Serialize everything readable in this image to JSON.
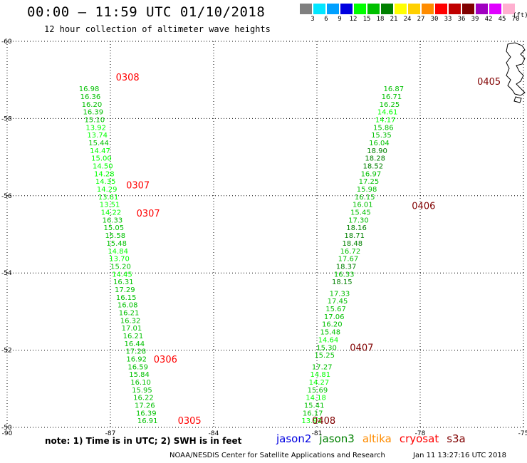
{
  "header": {
    "title": "00:00 – 11:59 UTC 01/10/2018",
    "subtitle": "12 hour collection of altimeter wave heights"
  },
  "legend": {
    "unit": "(ft)",
    "bins": [
      {
        "label": "3",
        "color": "#808080"
      },
      {
        "label": "6",
        "color": "#00e6ff"
      },
      {
        "label": "9",
        "color": "#00a0ff"
      },
      {
        "label": "12",
        "color": "#0000e0"
      },
      {
        "label": "15",
        "color": "#00ff00"
      },
      {
        "label": "18",
        "color": "#00c000"
      },
      {
        "label": "21",
        "color": "#008000"
      },
      {
        "label": "24",
        "color": "#ffff00"
      },
      {
        "label": "27",
        "color": "#ffd000"
      },
      {
        "label": "30",
        "color": "#ff8c00"
      },
      {
        "label": "33",
        "color": "#ff0000"
      },
      {
        "label": "36",
        "color": "#c00000"
      },
      {
        "label": "39",
        "color": "#800000"
      },
      {
        "label": "42",
        "color": "#a000c0"
      },
      {
        "label": "45",
        "color": "#e000ff"
      },
      {
        "label": "70",
        "color": "#ffb0d0"
      }
    ]
  },
  "footer": {
    "note": "note: 1) Time is in UTC; 2) SWH is in feet",
    "satellites": [
      {
        "name": "jason2",
        "color": "#0000e0"
      },
      {
        "name": "jason3",
        "color": "#008000"
      },
      {
        "name": "altika",
        "color": "#ff8c00"
      },
      {
        "name": "cryosat",
        "color": "#ff0000"
      },
      {
        "name": "s3a",
        "color": "#800000"
      }
    ],
    "credit": "NOAA/NESDIS Center for Satellite Applications and Research",
    "timestamp": "Jan 11 13:27:16 UTC 2018"
  },
  "chart_data": {
    "type": "scatter",
    "title": "00:00 – 11:59 UTC 01/10/2018",
    "subtitle": "12 hour collection of altimeter wave heights",
    "xlim": [
      -90,
      -75
    ],
    "ylim": [
      -60,
      -50
    ],
    "xticks": [
      -90,
      -87,
      -84,
      -81,
      -78,
      -75
    ],
    "yticks": [
      -50,
      -52,
      -54,
      -56,
      -58,
      -60
    ],
    "xtick_labels": [
      "-90",
      "-87",
      "-84",
      "-81",
      "-78",
      "-75"
    ],
    "ytick_labels": [
      "-50",
      "-52",
      "-54",
      "-56",
      "-58",
      "-60"
    ],
    "grid": true,
    "time_labels": [
      {
        "text": "0305",
        "lon": -84.7,
        "lat": -50.18,
        "color": "#ff0000"
      },
      {
        "text": "0306",
        "lon": -85.4,
        "lat": -51.77,
        "color": "#ff0000"
      },
      {
        "text": "0307",
        "lon": -85.9,
        "lat": -55.55,
        "color": "#ff0000"
      },
      {
        "text": "0307",
        "lon": -86.2,
        "lat": -56.28,
        "color": "#ff0000"
      },
      {
        "text": "0308",
        "lon": -86.5,
        "lat": -59.08,
        "color": "#ff0000"
      },
      {
        "text": "0408",
        "lon": -80.8,
        "lat": -50.18,
        "color": "#800000"
      },
      {
        "text": "0407",
        "lon": -79.7,
        "lat": -52.08,
        "color": "#800000"
      },
      {
        "text": "0406",
        "lon": -77.9,
        "lat": -55.75,
        "color": "#800000"
      },
      {
        "text": "0405",
        "lon": -76.0,
        "lat": -58.97,
        "color": "#800000"
      }
    ],
    "tracks": [
      {
        "satellite": "cryosat",
        "points": [
          {
            "lon": -85.92,
            "lat": -50.18,
            "v": "16.91"
          },
          {
            "lon": -85.96,
            "lat": -50.38,
            "v": "16.39"
          },
          {
            "lon": -86.0,
            "lat": -50.58,
            "v": "17.26"
          },
          {
            "lon": -86.04,
            "lat": -50.78,
            "v": "16.22"
          },
          {
            "lon": -86.08,
            "lat": -50.98,
            "v": "15.95"
          },
          {
            "lon": -86.12,
            "lat": -51.18,
            "v": "16.10"
          },
          {
            "lon": -86.16,
            "lat": -51.38,
            "v": "15.84"
          },
          {
            "lon": -86.2,
            "lat": -51.58,
            "v": "16.59"
          },
          {
            "lon": -86.24,
            "lat": -51.78,
            "v": "16.92"
          },
          {
            "lon": -86.26,
            "lat": -51.98,
            "v": "17.28"
          },
          {
            "lon": -86.3,
            "lat": -52.18,
            "v": "16.44"
          },
          {
            "lon": -86.34,
            "lat": -52.38,
            "v": "16.21"
          },
          {
            "lon": -86.38,
            "lat": -52.58,
            "v": "17.01"
          },
          {
            "lon": -86.42,
            "lat": -52.78,
            "v": "16.32"
          },
          {
            "lon": -86.46,
            "lat": -52.98,
            "v": "16.21"
          },
          {
            "lon": -86.5,
            "lat": -53.18,
            "v": "16.08"
          },
          {
            "lon": -86.54,
            "lat": -53.38,
            "v": "16.15"
          },
          {
            "lon": -86.58,
            "lat": -53.58,
            "v": "17.29"
          },
          {
            "lon": -86.62,
            "lat": -53.78,
            "v": "16.31"
          },
          {
            "lon": -86.66,
            "lat": -53.98,
            "v": "14.45"
          },
          {
            "lon": -86.7,
            "lat": -54.18,
            "v": "15.20"
          },
          {
            "lon": -86.74,
            "lat": -54.38,
            "v": "13.70"
          },
          {
            "lon": -86.78,
            "lat": -54.58,
            "v": "14.84"
          },
          {
            "lon": -86.82,
            "lat": -54.78,
            "v": "15.48"
          },
          {
            "lon": -86.86,
            "lat": -54.98,
            "v": "15.58"
          },
          {
            "lon": -86.9,
            "lat": -55.18,
            "v": "15.05"
          },
          {
            "lon": -86.94,
            "lat": -55.38,
            "v": "16.33"
          },
          {
            "lon": -86.98,
            "lat": -55.58,
            "v": "14.22"
          },
          {
            "lon": -87.02,
            "lat": -55.78,
            "v": "13.51"
          },
          {
            "lon": -87.06,
            "lat": -55.98,
            "v": "13.61"
          },
          {
            "lon": -87.1,
            "lat": -56.18,
            "v": "14.29"
          },
          {
            "lon": -87.14,
            "lat": -56.38,
            "v": "14.35"
          },
          {
            "lon": -87.18,
            "lat": -56.58,
            "v": "14.28"
          },
          {
            "lon": -87.22,
            "lat": -56.78,
            "v": "14.50"
          },
          {
            "lon": -87.26,
            "lat": -56.98,
            "v": "15.00"
          },
          {
            "lon": -87.3,
            "lat": -57.18,
            "v": "14.47"
          },
          {
            "lon": -87.34,
            "lat": -57.38,
            "v": "15.44"
          },
          {
            "lon": -87.38,
            "lat": -57.58,
            "v": "13.74"
          },
          {
            "lon": -87.42,
            "lat": -57.78,
            "v": "13.92"
          },
          {
            "lon": -87.46,
            "lat": -57.98,
            "v": "15.10"
          },
          {
            "lon": -87.5,
            "lat": -58.18,
            "v": "16.39"
          },
          {
            "lon": -87.54,
            "lat": -58.38,
            "v": "16.20"
          },
          {
            "lon": -87.58,
            "lat": -58.58,
            "v": "16.36"
          },
          {
            "lon": -87.62,
            "lat": -58.78,
            "v": "16.98"
          }
        ]
      },
      {
        "satellite": "s3a",
        "points": [
          {
            "lon": -81.15,
            "lat": -50.18,
            "v": "13.92"
          },
          {
            "lon": -81.12,
            "lat": -50.38,
            "v": "16.17"
          },
          {
            "lon": -81.08,
            "lat": -50.58,
            "v": "15.41"
          },
          {
            "lon": -81.03,
            "lat": -50.78,
            "v": "14.18"
          },
          {
            "lon": -80.98,
            "lat": -50.98,
            "v": "15.69"
          },
          {
            "lon": -80.94,
            "lat": -51.18,
            "v": "14.27"
          },
          {
            "lon": -80.9,
            "lat": -51.38,
            "v": "14.81"
          },
          {
            "lon": -80.85,
            "lat": -51.58,
            "v": "17.27"
          },
          {
            "lon": -80.78,
            "lat": -51.88,
            "v": "15.25"
          },
          {
            "lon": -80.72,
            "lat": -52.08,
            "v": "15.30"
          },
          {
            "lon": -80.67,
            "lat": -52.28,
            "v": "14.64"
          },
          {
            "lon": -80.61,
            "lat": -52.48,
            "v": "15.48"
          },
          {
            "lon": -80.56,
            "lat": -52.68,
            "v": "16.20"
          },
          {
            "lon": -80.5,
            "lat": -52.88,
            "v": "17.06"
          },
          {
            "lon": -80.45,
            "lat": -53.08,
            "v": "15.67"
          },
          {
            "lon": -80.4,
            "lat": -53.28,
            "v": "17.45"
          },
          {
            "lon": -80.34,
            "lat": -53.48,
            "v": "17.33"
          },
          {
            "lon": -80.27,
            "lat": -53.78,
            "v": "18.15"
          },
          {
            "lon": -80.21,
            "lat": -53.98,
            "v": "16.33"
          },
          {
            "lon": -80.15,
            "lat": -54.18,
            "v": "18.37"
          },
          {
            "lon": -80.09,
            "lat": -54.38,
            "v": "17.67"
          },
          {
            "lon": -80.03,
            "lat": -54.58,
            "v": "16.72"
          },
          {
            "lon": -79.97,
            "lat": -54.78,
            "v": "18.48"
          },
          {
            "lon": -79.91,
            "lat": -54.98,
            "v": "18.71"
          },
          {
            "lon": -79.85,
            "lat": -55.18,
            "v": "18.16"
          },
          {
            "lon": -79.79,
            "lat": -55.38,
            "v": "17.30"
          },
          {
            "lon": -79.73,
            "lat": -55.58,
            "v": "15.45"
          },
          {
            "lon": -79.67,
            "lat": -55.78,
            "v": "16.01"
          },
          {
            "lon": -79.61,
            "lat": -55.98,
            "v": "16.15"
          },
          {
            "lon": -79.55,
            "lat": -56.18,
            "v": "15.98"
          },
          {
            "lon": -79.49,
            "lat": -56.38,
            "v": "17.25"
          },
          {
            "lon": -79.43,
            "lat": -56.58,
            "v": "16.97"
          },
          {
            "lon": -79.37,
            "lat": -56.78,
            "v": "18.52"
          },
          {
            "lon": -79.31,
            "lat": -56.98,
            "v": "18.28"
          },
          {
            "lon": -79.25,
            "lat": -57.18,
            "v": "18.90"
          },
          {
            "lon": -79.19,
            "lat": -57.38,
            "v": "16.04"
          },
          {
            "lon": -79.13,
            "lat": -57.58,
            "v": "15.35"
          },
          {
            "lon": -79.07,
            "lat": -57.78,
            "v": "15.86"
          },
          {
            "lon": -79.01,
            "lat": -57.98,
            "v": "14.17"
          },
          {
            "lon": -78.95,
            "lat": -58.18,
            "v": "14.61"
          },
          {
            "lon": -78.89,
            "lat": -58.38,
            "v": "16.25"
          },
          {
            "lon": -78.83,
            "lat": -58.58,
            "v": "16.71"
          },
          {
            "lon": -78.77,
            "lat": -58.78,
            "v": "16.87"
          }
        ]
      }
    ]
  }
}
